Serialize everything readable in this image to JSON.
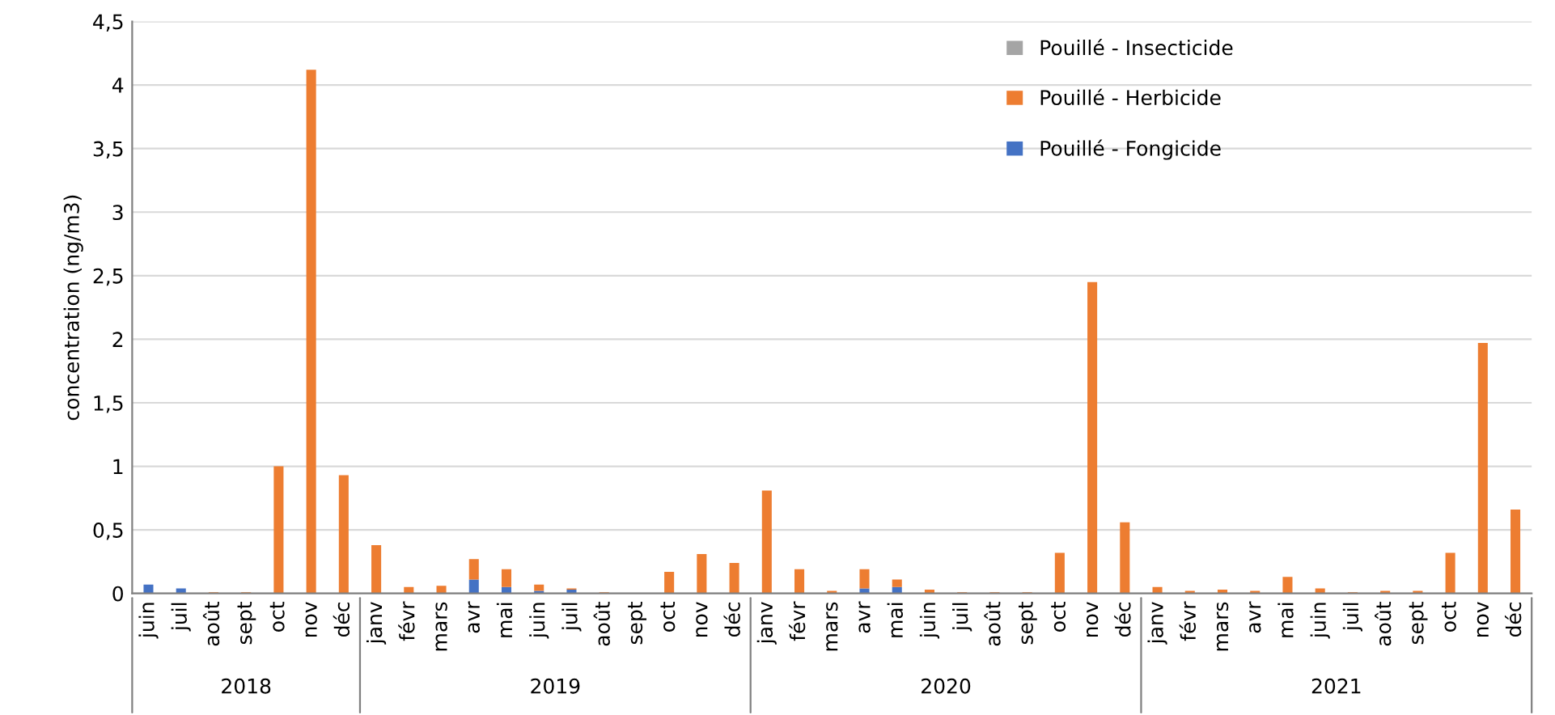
{
  "chart_data": {
    "type": "bar",
    "stacked": true,
    "ylabel": "concentration (ng/m3)",
    "categories": [
      "juin",
      "juil",
      "août",
      "sept",
      "oct",
      "nov",
      "déc",
      "janv",
      "févr",
      "mars",
      "avr",
      "mai",
      "juin",
      "juil",
      "août",
      "sept",
      "oct",
      "nov",
      "déc",
      "janv",
      "févr",
      "mars",
      "avr",
      "mai",
      "juin",
      "juil",
      "août",
      "sept",
      "oct",
      "nov",
      "déc",
      "janv",
      "févr",
      "mars",
      "avr",
      "mai",
      "juin",
      "juil",
      "août",
      "sept",
      "oct",
      "nov",
      "déc"
    ],
    "series": [
      {
        "name": "Pouillé - Fongicide",
        "color": "#4472c4",
        "values": [
          0.07,
          0.04,
          0,
          0,
          0,
          0,
          0,
          0,
          0,
          0,
          0.11,
          0.05,
          0.02,
          0.03,
          0,
          0,
          0,
          0,
          0,
          0,
          0,
          0,
          0.04,
          0.05,
          0,
          0,
          0,
          0,
          0,
          0,
          0,
          0,
          0,
          0,
          0,
          0,
          0,
          0,
          0,
          0,
          0,
          0,
          0
        ]
      },
      {
        "name": "Pouillé - Herbicide",
        "color": "#ed7d31",
        "values": [
          0,
          0,
          0.01,
          0.01,
          1.0,
          4.12,
          0.93,
          0.38,
          0.05,
          0.06,
          0.16,
          0.14,
          0.05,
          0.01,
          0.01,
          0,
          0.17,
          0.31,
          0.24,
          0.81,
          0.19,
          0.02,
          0.15,
          0.06,
          0.03,
          0.01,
          0.01,
          0.01,
          0.32,
          2.45,
          0.56,
          0.05,
          0.02,
          0.03,
          0.02,
          0.13,
          0.04,
          0.01,
          0.02,
          0.02,
          0.32,
          1.97,
          0.66
        ]
      },
      {
        "name": "Pouillé - Insecticide",
        "color": "#a5a5a5",
        "values": [
          0,
          0,
          0,
          0,
          0,
          0,
          0,
          0,
          0,
          0,
          0,
          0,
          0,
          0,
          0,
          0,
          0,
          0,
          0,
          0,
          0,
          0,
          0,
          0,
          0,
          0,
          0,
          0,
          0,
          0,
          0,
          0,
          0,
          0,
          0,
          0,
          0,
          0,
          0,
          0,
          0,
          0,
          0
        ]
      }
    ],
    "ylim": [
      0,
      4.5
    ],
    "yticks": [
      0,
      {
        "value": 0.5,
        "label": "0,5"
      },
      1,
      {
        "value": 1.5,
        "label": "1,5"
      },
      2,
      {
        "value": 2.5,
        "label": "2,5"
      },
      3,
      {
        "value": 3.5,
        "label": "3,5"
      },
      4,
      {
        "value": 4.5,
        "label": "4,5"
      }
    ],
    "grid": "y",
    "legend": "top right",
    "annotations": [
      "2018",
      "2019",
      "2020",
      "2021"
    ]
  }
}
